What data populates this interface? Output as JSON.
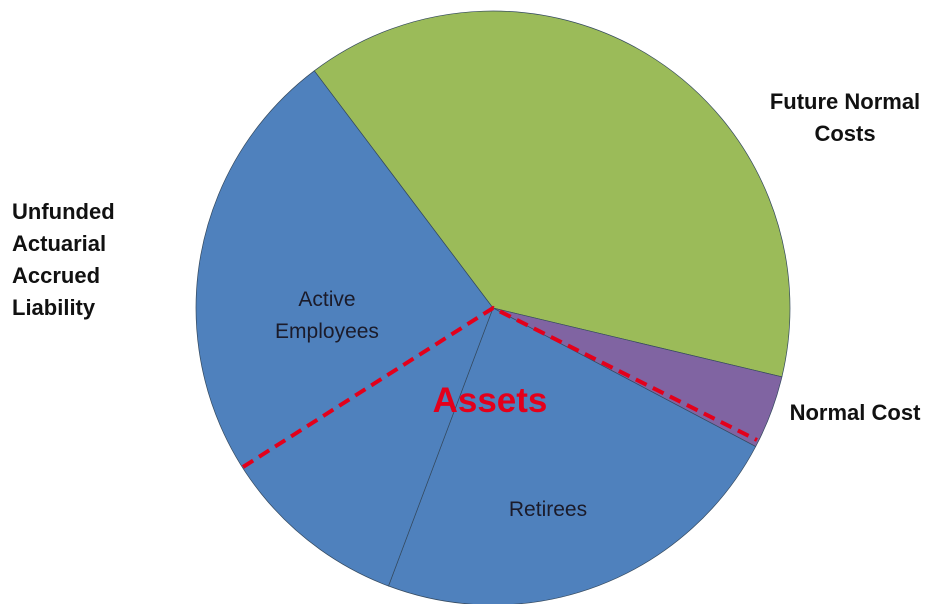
{
  "chart_data": {
    "type": "pie",
    "categories": [
      "Future Normal Costs",
      "Normal Cost",
      "Retirees",
      "Active Employees"
    ],
    "values": [
      39,
      4,
      23,
      34
    ],
    "colors": [
      "#9bbb59",
      "#8064a2",
      "#4f81bd",
      "#4f81bd"
    ],
    "start_angle": -127,
    "annotations": [
      "Unfunded Actuarial Accrued Liability",
      "Assets"
    ]
  }
}
